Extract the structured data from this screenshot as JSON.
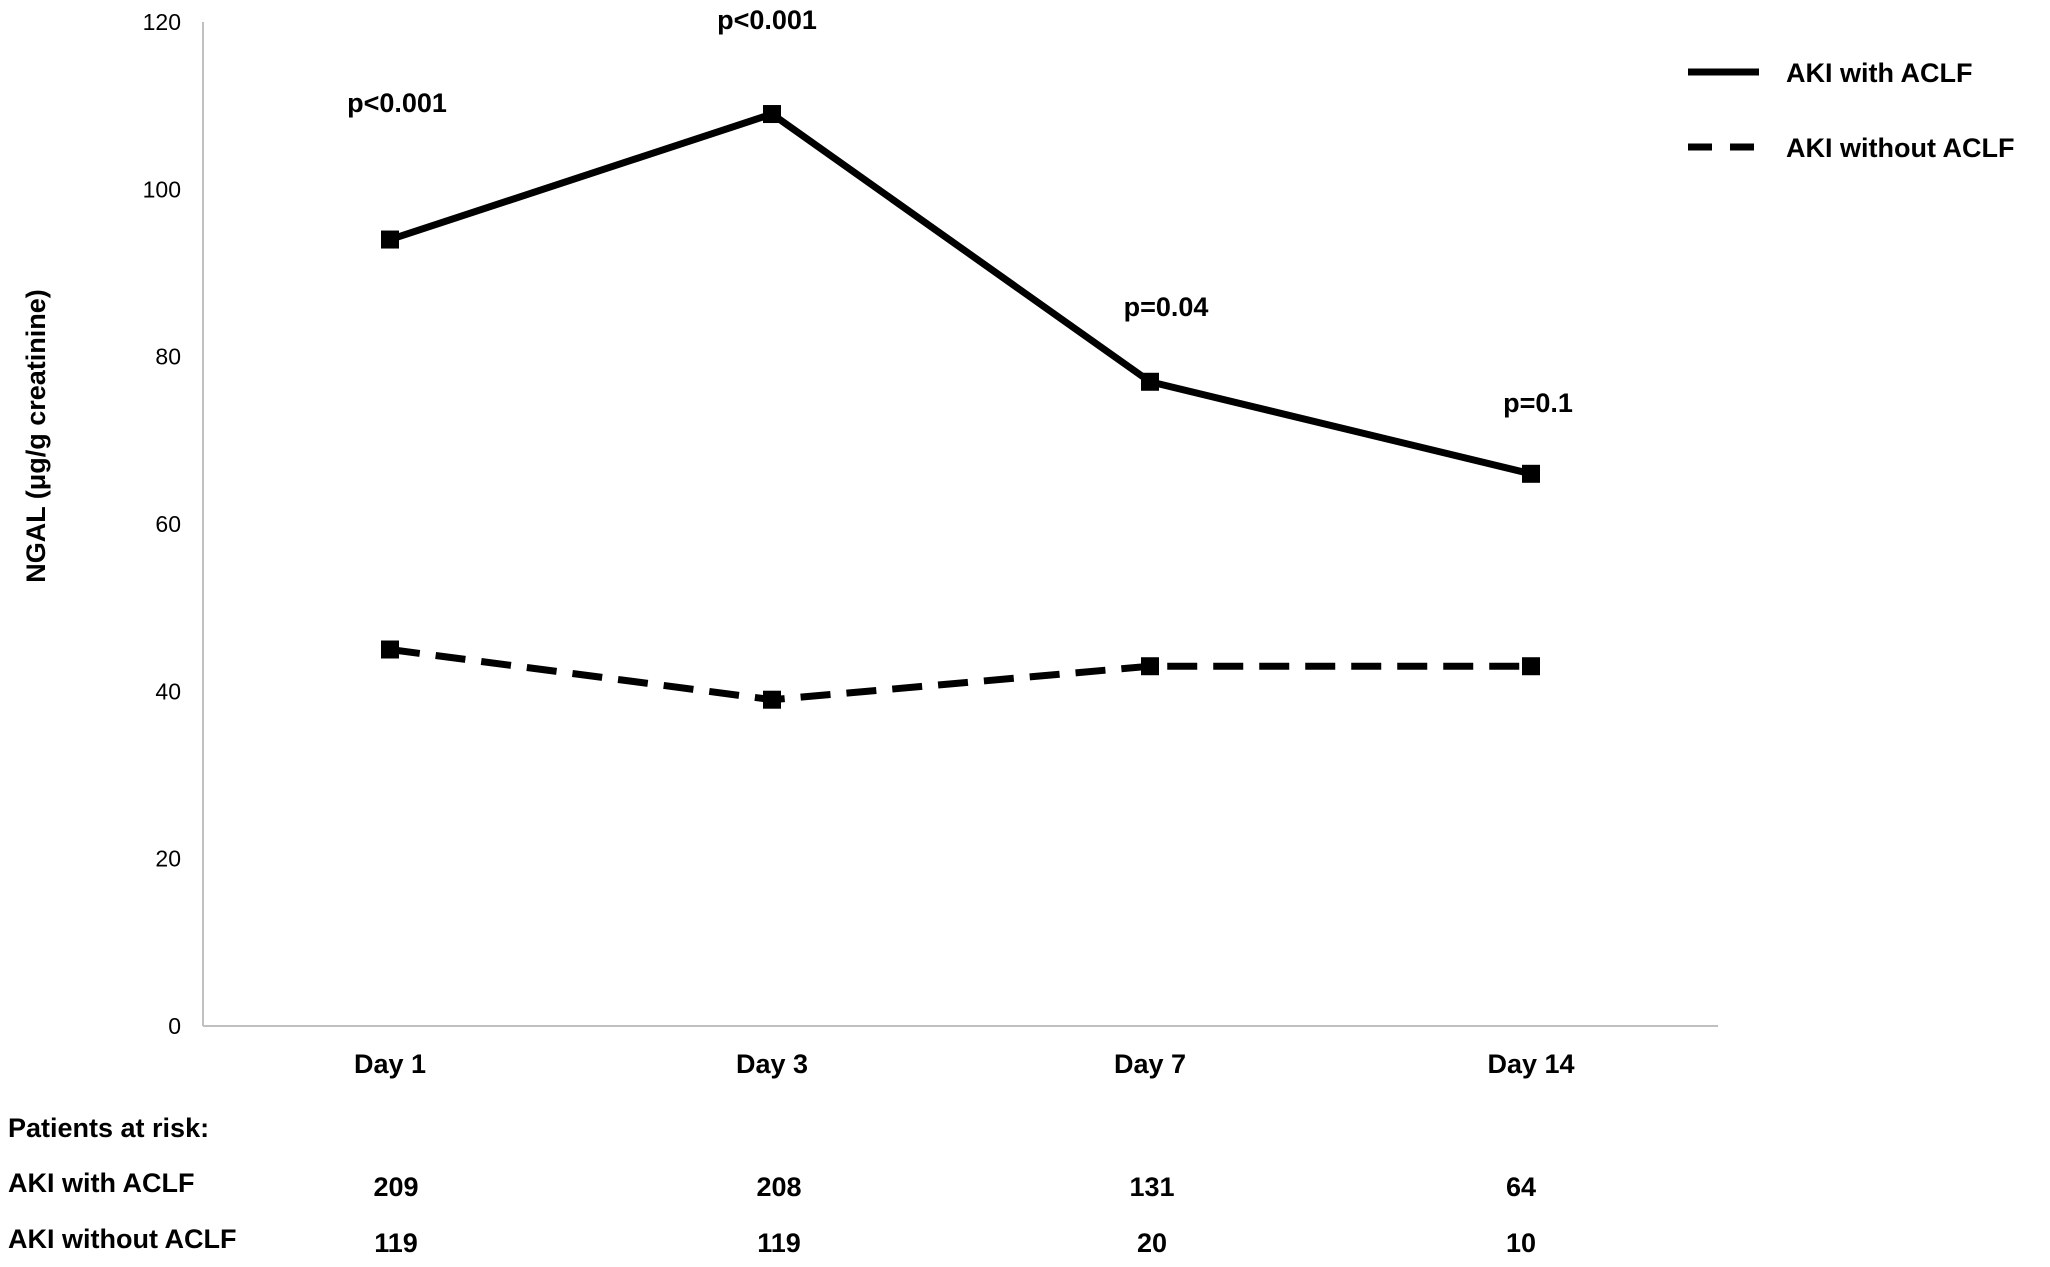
{
  "chart_data": {
    "type": "line",
    "categories": [
      "Day 1",
      "Day 3",
      "Day 7",
      "Day 14"
    ],
    "ylabel": "NGAL (μg/g creatinine)",
    "xlabel": "",
    "ylim": [
      0,
      120
    ],
    "yticks": [
      0,
      20,
      40,
      60,
      80,
      100,
      120
    ],
    "grid": false,
    "legend_position": "top-right",
    "series": [
      {
        "name": "AKI with ACLF",
        "style": "solid",
        "values": [
          94,
          109,
          77,
          66
        ]
      },
      {
        "name": "AKI without ACLF",
        "style": "dashed",
        "values": [
          45,
          39,
          43,
          43
        ]
      }
    ],
    "annotations": [
      "p<0.001",
      "p<0.001",
      "p=0.04",
      "p=0.1"
    ],
    "line_color": "#000000"
  },
  "patients_at_risk": {
    "heading": "Patients at risk:",
    "rows": [
      {
        "label": "AKI with ACLF",
        "values": [
          "209",
          "208",
          "131",
          "64"
        ]
      },
      {
        "label": "AKI without ACLF",
        "values": [
          "119",
          "119",
          "20",
          "10"
        ]
      }
    ]
  }
}
